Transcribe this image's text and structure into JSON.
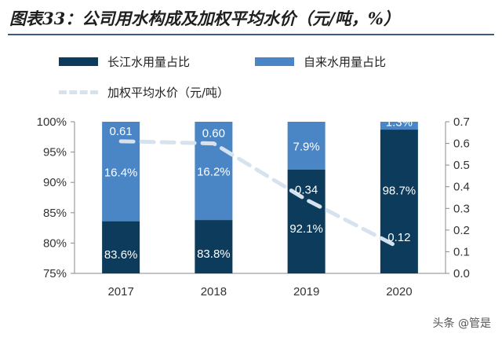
{
  "title": "图表33：公司用水构成及加权平均水价（元/吨，%）",
  "watermark": "头条 @管是",
  "colors": {
    "changjiang": "#0d3b5c",
    "self": "#4a86c6",
    "price": "#d6e3ef",
    "axis": "#8a8a8a"
  },
  "chart_data": {
    "type": "bar",
    "stacked": true,
    "categories": [
      "2017",
      "2018",
      "2019",
      "2020"
    ],
    "series": [
      {
        "name": "长江水用量占比",
        "values": [
          83.6,
          83.8,
          92.1,
          98.7
        ],
        "labels": [
          "83.6%",
          "83.8%",
          "92.1%",
          "98.7%"
        ]
      },
      {
        "name": "自来水用量占比",
        "values": [
          16.4,
          16.2,
          7.9,
          1.3
        ],
        "labels": [
          "16.4%",
          "16.2%",
          "7.9%",
          "1.3%"
        ]
      }
    ],
    "line_series": {
      "name": "加权平均水价（元/吨）",
      "values": [
        0.61,
        0.6,
        0.34,
        0.12
      ],
      "labels": [
        "0.61",
        "0.60",
        "0.34",
        "0.12"
      ],
      "axis": "right",
      "style": "dashed"
    },
    "ylim": [
      75,
      100
    ],
    "y_ticks": [
      "75%",
      "80%",
      "85%",
      "90%",
      "95%",
      "100%"
    ],
    "y2lim": [
      0,
      0.7
    ],
    "y2_ticks": [
      "0.0",
      "0.1",
      "0.2",
      "0.3",
      "0.4",
      "0.5",
      "0.6",
      "0.7"
    ],
    "legend_position": "top",
    "grid": false
  }
}
